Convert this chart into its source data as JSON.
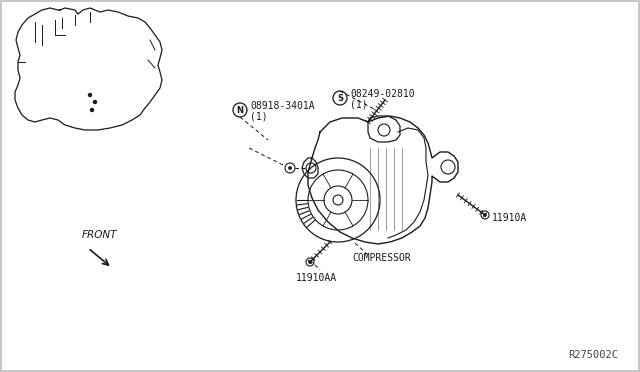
{
  "bg_color": "#ffffff",
  "line_color": "#1a1a1a",
  "diagram_ref": "R275002C",
  "labels": {
    "part1_code": "S",
    "part1_num": "08249-02810",
    "part1_qty": "(1)",
    "part2_code": "N",
    "part2_num": "08918-3401A",
    "part2_qty": "(1)",
    "part3_label": "11910A",
    "part4_label": "11910AA",
    "compressor": "COMPRESSOR",
    "front": "FRONT"
  }
}
